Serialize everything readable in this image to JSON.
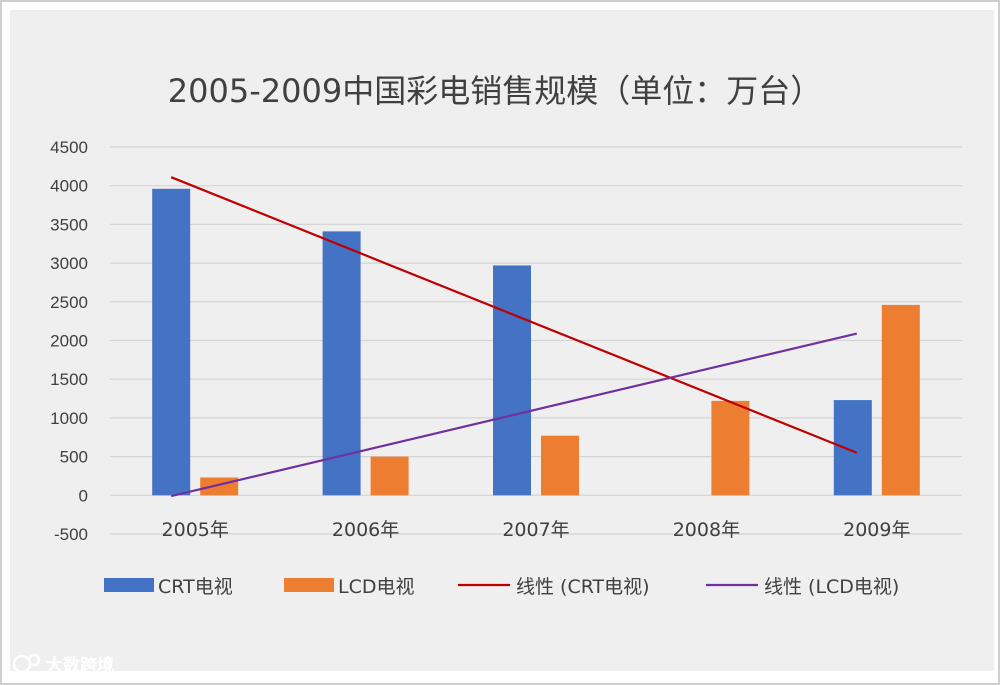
{
  "chart_data": {
    "type": "bar",
    "title": "2005-2009中国彩电销售规模（单位：万台）",
    "categories": [
      "2005年",
      "2006年",
      "2007年",
      "2008年",
      "2009年"
    ],
    "series": [
      {
        "name": "CRT电视",
        "color": "#4472C4",
        "values": [
          3960,
          3410,
          2970,
          0,
          1230
        ]
      },
      {
        "name": "LCD电视",
        "color": "#ED7D31",
        "values": [
          230,
          500,
          770,
          1220,
          2460
        ]
      }
    ],
    "trendlines": [
      {
        "name": "线性 (CRT电视)",
        "color": "#C00000",
        "start": 4110,
        "end": 550
      },
      {
        "name": "线性 (LCD电视)",
        "color": "#7030A0",
        "start": -10,
        "end": 2090
      }
    ],
    "yticks": [
      "4500",
      "4000",
      "3500",
      "3000",
      "2500",
      "2000",
      "1500",
      "1000",
      "500",
      "0",
      "-500"
    ],
    "ylim": [
      -500,
      4500
    ],
    "xlabel": "",
    "ylabel": "",
    "grid": true,
    "legend": "bottom"
  },
  "watermark": {
    "text": "大数跨境",
    "icon": "logo-icon"
  }
}
